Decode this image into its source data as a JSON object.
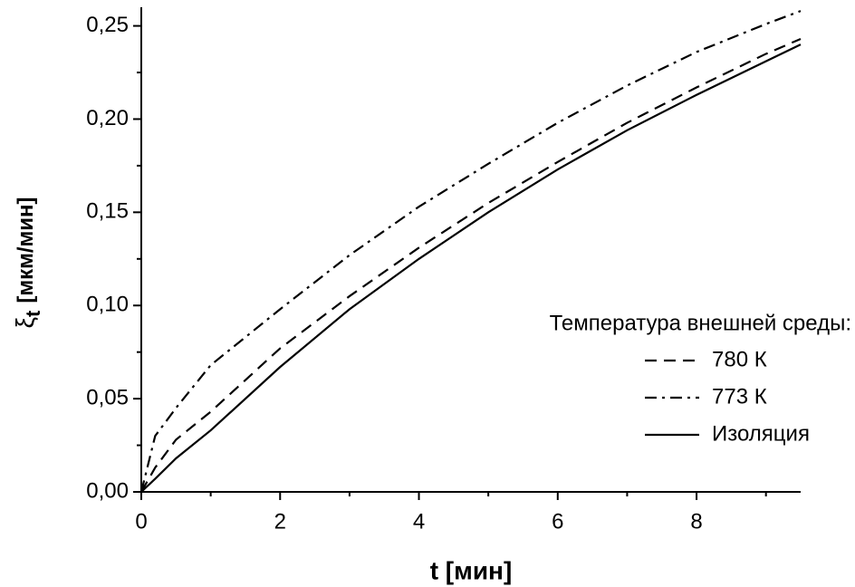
{
  "chart_data": {
    "type": "line",
    "x_label": "t [мин]",
    "y_label": {
      "symbol": "ξ",
      "subscript": "t",
      "unit": "[мкм/мин]"
    },
    "legend_title": "Температура внешней среды:",
    "legend": "right",
    "x": [
      0,
      0.2,
      0.5,
      1,
      2,
      3,
      4,
      5,
      6,
      7,
      8,
      9,
      9.5
    ],
    "series": [
      {
        "name": "780 К",
        "color": "#000000",
        "dash": "dashed",
        "values": [
          0,
          0.013,
          0.028,
          0.043,
          0.077,
          0.105,
          0.131,
          0.155,
          0.177,
          0.198,
          0.217,
          0.235,
          0.243
        ]
      },
      {
        "name": "773 К",
        "color": "#000000",
        "dash": "dashdot",
        "values": [
          0,
          0.03,
          0.045,
          0.068,
          0.098,
          0.127,
          0.153,
          0.176,
          0.198,
          0.218,
          0.236,
          0.251,
          0.258
        ]
      },
      {
        "name": "Изоляция",
        "color": "#000000",
        "dash": "solid",
        "values": [
          0,
          0.007,
          0.018,
          0.033,
          0.067,
          0.098,
          0.125,
          0.15,
          0.173,
          0.194,
          0.213,
          0.231,
          0.24
        ]
      }
    ],
    "xlim": [
      0,
      9.5
    ],
    "ylim": [
      0,
      0.26
    ],
    "xticks": [
      0,
      2,
      4,
      6,
      8
    ],
    "xminorticks": [
      1,
      3,
      5,
      7,
      9
    ],
    "yticks": [
      {
        "value": 0,
        "label": "0,00"
      },
      {
        "value": 0.05,
        "label": "0,05"
      },
      {
        "value": 0.1,
        "label": "0,10"
      },
      {
        "value": 0.15,
        "label": "0,15"
      },
      {
        "value": 0.2,
        "label": "0,20"
      },
      {
        "value": 0.25,
        "label": "0,25"
      }
    ],
    "yminorticks": [
      0.025,
      0.075,
      0.125,
      0.175,
      0.225
    ],
    "grid": false
  }
}
